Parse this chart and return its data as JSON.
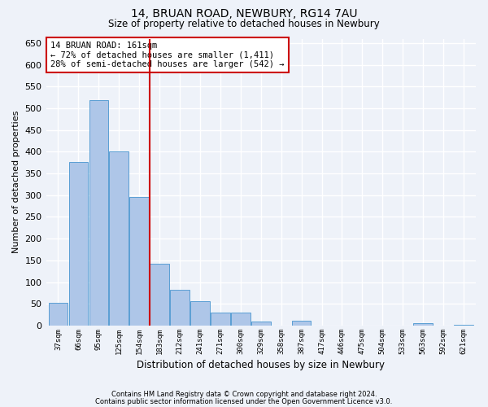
{
  "title": "14, BRUAN ROAD, NEWBURY, RG14 7AU",
  "subtitle": "Size of property relative to detached houses in Newbury",
  "xlabel": "Distribution of detached houses by size in Newbury",
  "ylabel": "Number of detached properties",
  "categories": [
    "37sqm",
    "66sqm",
    "95sqm",
    "125sqm",
    "154sqm",
    "183sqm",
    "212sqm",
    "241sqm",
    "271sqm",
    "300sqm",
    "329sqm",
    "358sqm",
    "387sqm",
    "417sqm",
    "446sqm",
    "475sqm",
    "504sqm",
    "533sqm",
    "563sqm",
    "592sqm",
    "621sqm"
  ],
  "values": [
    52,
    376,
    519,
    401,
    295,
    142,
    82,
    57,
    30,
    30,
    10,
    0,
    11,
    0,
    0,
    0,
    0,
    0,
    5,
    0,
    2
  ],
  "bar_color": "#aec6e8",
  "bar_edge_color": "#5a9fd4",
  "reference_line_x": 4.5,
  "reference_line_color": "#cc0000",
  "annotation_text": "14 BRUAN ROAD: 161sqm\n← 72% of detached houses are smaller (1,411)\n28% of semi-detached houses are larger (542) →",
  "annotation_box_color": "#cc0000",
  "ylim": [
    0,
    660
  ],
  "yticks": [
    0,
    50,
    100,
    150,
    200,
    250,
    300,
    350,
    400,
    450,
    500,
    550,
    600,
    650
  ],
  "background_color": "#eef2f9",
  "grid_color": "#ffffff",
  "footer_line1": "Contains HM Land Registry data © Crown copyright and database right 2024.",
  "footer_line2": "Contains public sector information licensed under the Open Government Licence v3.0."
}
